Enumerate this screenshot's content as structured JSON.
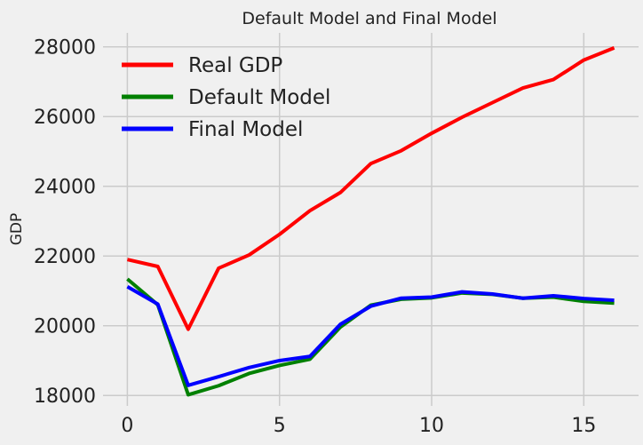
{
  "chart_data": {
    "type": "line",
    "title": "Default Model and Final Model",
    "xlabel": "",
    "ylabel": "GDP",
    "x": [
      0,
      1,
      2,
      3,
      4,
      5,
      6,
      7,
      8,
      9,
      10,
      11,
      12,
      13,
      14,
      15,
      16
    ],
    "xlim": [
      -0.8,
      16.8
    ],
    "ylim": [
      17700,
      28400
    ],
    "x_ticks": [
      0,
      5,
      10,
      15
    ],
    "y_ticks": [
      18000,
      20000,
      22000,
      24000,
      26000,
      28000
    ],
    "grid": true,
    "legend_position": "top-left",
    "series": [
      {
        "name": "Real GDP",
        "color": "#ff0000",
        "values": [
          21900,
          21700,
          19900,
          21650,
          22030,
          22620,
          23300,
          23820,
          24650,
          25020,
          25520,
          25980,
          26400,
          26820,
          27060,
          27620,
          27970
        ]
      },
      {
        "name": "Default Model",
        "color": "#008000",
        "values": [
          21340,
          20600,
          18020,
          18280,
          18630,
          18860,
          19040,
          19960,
          20590,
          20760,
          20800,
          20940,
          20900,
          20790,
          20820,
          20700,
          20650
        ]
      },
      {
        "name": "Final Model",
        "color": "#0000ff",
        "values": [
          21120,
          20620,
          18290,
          18540,
          18800,
          19000,
          19120,
          20040,
          20560,
          20790,
          20820,
          20970,
          20910,
          20790,
          20860,
          20780,
          20730
        ]
      }
    ]
  }
}
